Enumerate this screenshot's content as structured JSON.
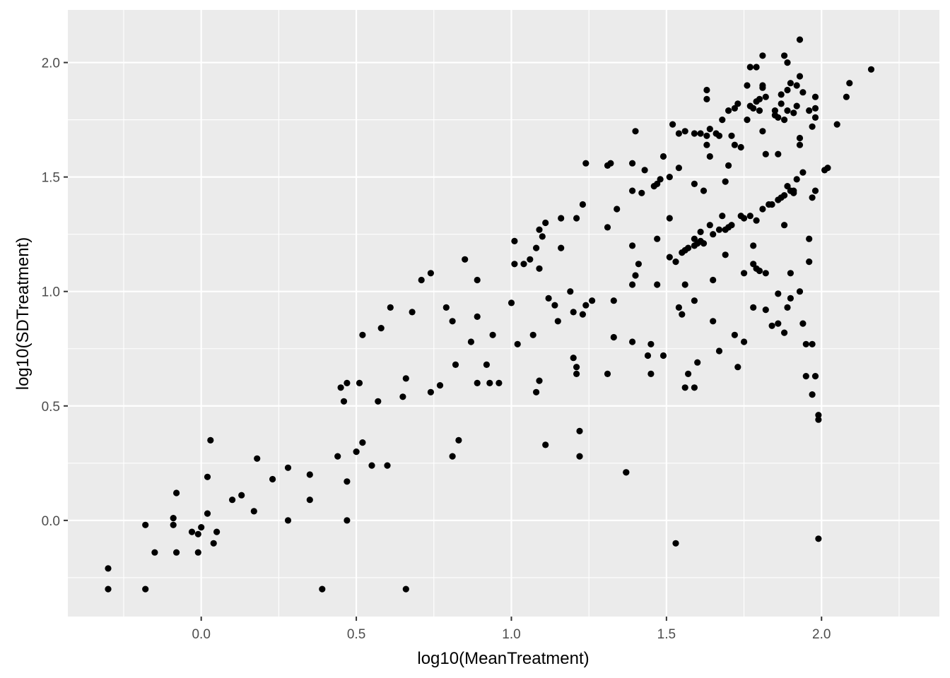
{
  "chart_data": {
    "type": "scatter",
    "title": "",
    "xlabel": "log10(MeanTreatment)",
    "ylabel": "log10(SDTreatment)",
    "xlim": [
      -0.43,
      2.38
    ],
    "ylim": [
      -0.42,
      2.23
    ],
    "x_ticks": [
      0.0,
      0.5,
      1.0,
      1.5,
      2.0
    ],
    "x_tick_labels": [
      "0.0",
      "0.5",
      "1.0",
      "1.5",
      "2.0"
    ],
    "y_ticks": [
      0.0,
      0.5,
      1.0,
      1.5,
      2.0
    ],
    "y_tick_labels": [
      "0.0",
      "0.5",
      "1.0",
      "1.5",
      "2.0"
    ],
    "grid": true,
    "legend": "none",
    "colors": {
      "panel": "#ebebeb",
      "grid": "#ffffff",
      "point": "#000000"
    },
    "points": [
      [
        -0.3,
        -0.21
      ],
      [
        -0.3,
        -0.3
      ],
      [
        -0.18,
        -0.02
      ],
      [
        -0.18,
        -0.3
      ],
      [
        -0.15,
        -0.14
      ],
      [
        -0.09,
        0.01
      ],
      [
        -0.09,
        -0.02
      ],
      [
        -0.08,
        0.12
      ],
      [
        -0.08,
        -0.14
      ],
      [
        -0.03,
        -0.05
      ],
      [
        -0.01,
        -0.06
      ],
      [
        -0.01,
        -0.14
      ],
      [
        0.0,
        -0.03
      ],
      [
        0.02,
        0.19
      ],
      [
        0.02,
        0.03
      ],
      [
        0.03,
        0.35
      ],
      [
        0.04,
        -0.1
      ],
      [
        0.05,
        -0.05
      ],
      [
        0.1,
        0.09
      ],
      [
        0.13,
        0.11
      ],
      [
        0.17,
        0.04
      ],
      [
        0.18,
        0.27
      ],
      [
        0.23,
        0.18
      ],
      [
        0.28,
        0.23
      ],
      [
        0.28,
        0.0
      ],
      [
        0.35,
        0.2
      ],
      [
        0.35,
        0.09
      ],
      [
        0.39,
        -0.3
      ],
      [
        0.44,
        0.28
      ],
      [
        0.45,
        0.58
      ],
      [
        0.46,
        0.52
      ],
      [
        0.47,
        0.6
      ],
      [
        0.47,
        0.17
      ],
      [
        0.47,
        0.0
      ],
      [
        0.5,
        0.3
      ],
      [
        0.51,
        0.6
      ],
      [
        0.52,
        0.34
      ],
      [
        0.52,
        0.81
      ],
      [
        0.55,
        0.24
      ],
      [
        0.57,
        0.52
      ],
      [
        0.58,
        0.84
      ],
      [
        0.6,
        0.24
      ],
      [
        0.61,
        0.93
      ],
      [
        0.65,
        0.54
      ],
      [
        0.66,
        0.62
      ],
      [
        0.66,
        -0.3
      ],
      [
        0.68,
        0.91
      ],
      [
        0.71,
        1.05
      ],
      [
        0.74,
        1.08
      ],
      [
        0.74,
        0.56
      ],
      [
        0.77,
        0.59
      ],
      [
        0.79,
        0.93
      ],
      [
        0.81,
        0.87
      ],
      [
        0.81,
        0.28
      ],
      [
        0.82,
        0.68
      ],
      [
        0.83,
        0.35
      ],
      [
        0.85,
        1.14
      ],
      [
        0.87,
        0.78
      ],
      [
        0.89,
        1.05
      ],
      [
        0.89,
        0.89
      ],
      [
        0.89,
        0.6
      ],
      [
        0.92,
        0.68
      ],
      [
        0.93,
        0.6
      ],
      [
        0.94,
        0.81
      ],
      [
        0.96,
        0.6
      ],
      [
        1.0,
        0.95
      ],
      [
        1.01,
        1.12
      ],
      [
        1.01,
        1.22
      ],
      [
        1.02,
        0.77
      ],
      [
        1.04,
        1.12
      ],
      [
        1.06,
        1.14
      ],
      [
        1.07,
        0.81
      ],
      [
        1.08,
        1.19
      ],
      [
        1.08,
        0.56
      ],
      [
        1.09,
        0.61
      ],
      [
        1.09,
        1.27
      ],
      [
        1.09,
        1.1
      ],
      [
        1.1,
        1.24
      ],
      [
        1.11,
        1.3
      ],
      [
        1.11,
        0.33
      ],
      [
        1.12,
        0.97
      ],
      [
        1.14,
        0.94
      ],
      [
        1.15,
        0.87
      ],
      [
        1.16,
        1.32
      ],
      [
        1.16,
        1.19
      ],
      [
        1.19,
        1.0
      ],
      [
        1.2,
        0.91
      ],
      [
        1.2,
        0.71
      ],
      [
        1.21,
        0.67
      ],
      [
        1.21,
        0.64
      ],
      [
        1.21,
        1.32
      ],
      [
        1.22,
        0.39
      ],
      [
        1.22,
        0.28
      ],
      [
        1.23,
        1.38
      ],
      [
        1.23,
        0.9
      ],
      [
        1.24,
        1.56
      ],
      [
        1.24,
        0.94
      ],
      [
        1.26,
        0.96
      ],
      [
        1.31,
        1.55
      ],
      [
        1.31,
        1.28
      ],
      [
        1.31,
        0.64
      ],
      [
        1.32,
        1.56
      ],
      [
        1.33,
        0.96
      ],
      [
        1.33,
        0.8
      ],
      [
        1.34,
        1.36
      ],
      [
        1.37,
        0.21
      ],
      [
        1.37,
        0.21
      ],
      [
        1.39,
        1.56
      ],
      [
        1.39,
        1.44
      ],
      [
        1.39,
        1.2
      ],
      [
        1.39,
        1.03
      ],
      [
        1.39,
        0.78
      ],
      [
        1.4,
        1.7
      ],
      [
        1.4,
        1.07
      ],
      [
        1.41,
        1.12
      ],
      [
        1.42,
        1.43
      ],
      [
        1.43,
        1.53
      ],
      [
        1.44,
        0.72
      ],
      [
        1.45,
        0.77
      ],
      [
        1.45,
        0.64
      ],
      [
        1.46,
        1.46
      ],
      [
        1.47,
        1.47
      ],
      [
        1.47,
        1.23
      ],
      [
        1.47,
        1.03
      ],
      [
        1.48,
        1.49
      ],
      [
        1.49,
        1.59
      ],
      [
        1.49,
        0.72
      ],
      [
        1.51,
        1.32
      ],
      [
        1.51,
        1.5
      ],
      [
        1.51,
        1.15
      ],
      [
        1.52,
        1.73
      ],
      [
        1.53,
        1.13
      ],
      [
        1.53,
        -0.1
      ],
      [
        1.54,
        1.69
      ],
      [
        1.54,
        1.54
      ],
      [
        1.54,
        0.93
      ],
      [
        1.55,
        0.9
      ],
      [
        1.55,
        1.17
      ],
      [
        1.56,
        1.7
      ],
      [
        1.56,
        1.18
      ],
      [
        1.56,
        0.58
      ],
      [
        1.56,
        1.03
      ],
      [
        1.57,
        1.19
      ],
      [
        1.57,
        0.64
      ],
      [
        1.59,
        1.69
      ],
      [
        1.59,
        1.47
      ],
      [
        1.59,
        1.23
      ],
      [
        1.59,
        1.2
      ],
      [
        1.59,
        0.96
      ],
      [
        1.59,
        0.58
      ],
      [
        1.6,
        1.21
      ],
      [
        1.6,
        0.69
      ],
      [
        1.61,
        1.69
      ],
      [
        1.61,
        1.26
      ],
      [
        1.61,
        1.22
      ],
      [
        1.62,
        1.44
      ],
      [
        1.62,
        1.21
      ],
      [
        1.63,
        1.88
      ],
      [
        1.63,
        1.84
      ],
      [
        1.63,
        1.68
      ],
      [
        1.63,
        1.64
      ],
      [
        1.64,
        1.71
      ],
      [
        1.64,
        1.59
      ],
      [
        1.64,
        1.29
      ],
      [
        1.65,
        1.25
      ],
      [
        1.65,
        1.05
      ],
      [
        1.65,
        0.87
      ],
      [
        1.66,
        1.69
      ],
      [
        1.67,
        1.68
      ],
      [
        1.67,
        1.27
      ],
      [
        1.67,
        0.74
      ],
      [
        1.68,
        1.75
      ],
      [
        1.68,
        1.33
      ],
      [
        1.69,
        1.48
      ],
      [
        1.69,
        1.27
      ],
      [
        1.69,
        1.16
      ],
      [
        1.7,
        1.79
      ],
      [
        1.7,
        1.55
      ],
      [
        1.7,
        1.28
      ],
      [
        1.71,
        1.68
      ],
      [
        1.71,
        1.29
      ],
      [
        1.72,
        1.8
      ],
      [
        1.72,
        1.64
      ],
      [
        1.72,
        0.81
      ],
      [
        1.73,
        1.82
      ],
      [
        1.73,
        0.67
      ],
      [
        1.74,
        1.33
      ],
      [
        1.74,
        1.63
      ],
      [
        1.75,
        1.32
      ],
      [
        1.75,
        1.08
      ],
      [
        1.75,
        0.78
      ],
      [
        1.76,
        1.9
      ],
      [
        1.76,
        1.75
      ],
      [
        1.77,
        1.98
      ],
      [
        1.77,
        1.81
      ],
      [
        1.77,
        1.33
      ],
      [
        1.78,
        1.8
      ],
      [
        1.78,
        1.2
      ],
      [
        1.78,
        1.12
      ],
      [
        1.78,
        0.93
      ],
      [
        1.79,
        1.98
      ],
      [
        1.79,
        1.83
      ],
      [
        1.79,
        1.31
      ],
      [
        1.79,
        1.1
      ],
      [
        1.8,
        1.84
      ],
      [
        1.8,
        1.79
      ],
      [
        1.8,
        1.09
      ],
      [
        1.81,
        2.03
      ],
      [
        1.81,
        1.9
      ],
      [
        1.81,
        1.89
      ],
      [
        1.81,
        1.7
      ],
      [
        1.81,
        1.36
      ],
      [
        1.82,
        1.85
      ],
      [
        1.82,
        1.6
      ],
      [
        1.82,
        1.08
      ],
      [
        1.82,
        0.92
      ],
      [
        1.83,
        1.38
      ],
      [
        1.84,
        1.38
      ],
      [
        1.84,
        0.85
      ],
      [
        1.85,
        1.79
      ],
      [
        1.85,
        1.77
      ],
      [
        1.86,
        1.76
      ],
      [
        1.86,
        1.6
      ],
      [
        1.86,
        1.4
      ],
      [
        1.86,
        0.99
      ],
      [
        1.86,
        0.86
      ],
      [
        1.87,
        1.86
      ],
      [
        1.87,
        1.82
      ],
      [
        1.87,
        1.41
      ],
      [
        1.88,
        2.03
      ],
      [
        1.88,
        1.75
      ],
      [
        1.88,
        1.42
      ],
      [
        1.88,
        1.29
      ],
      [
        1.88,
        0.82
      ],
      [
        1.89,
        1.88
      ],
      [
        1.89,
        1.79
      ],
      [
        1.89,
        1.46
      ],
      [
        1.89,
        0.93
      ],
      [
        1.89,
        2.0
      ],
      [
        1.9,
        1.91
      ],
      [
        1.9,
        1.44
      ],
      [
        1.9,
        1.08
      ],
      [
        1.9,
        0.97
      ],
      [
        1.91,
        1.78
      ],
      [
        1.91,
        1.44
      ],
      [
        1.91,
        1.43
      ],
      [
        1.92,
        1.9
      ],
      [
        1.92,
        1.81
      ],
      [
        1.92,
        1.49
      ],
      [
        1.93,
        2.1
      ],
      [
        1.93,
        1.94
      ],
      [
        1.93,
        1.67
      ],
      [
        1.93,
        1.64
      ],
      [
        1.93,
        1.0
      ],
      [
        1.94,
        1.87
      ],
      [
        1.94,
        1.52
      ],
      [
        1.94,
        0.86
      ],
      [
        1.95,
        0.77
      ],
      [
        1.95,
        0.63
      ],
      [
        1.96,
        1.79
      ],
      [
        1.96,
        1.13
      ],
      [
        1.96,
        1.23
      ],
      [
        1.97,
        1.72
      ],
      [
        1.97,
        1.41
      ],
      [
        1.97,
        0.77
      ],
      [
        1.97,
        0.55
      ],
      [
        1.98,
        1.8
      ],
      [
        1.98,
        1.85
      ],
      [
        1.98,
        1.76
      ],
      [
        1.98,
        1.44
      ],
      [
        1.98,
        0.63
      ],
      [
        1.99,
        0.44
      ],
      [
        1.99,
        0.46
      ],
      [
        1.99,
        -0.08
      ],
      [
        2.01,
        1.53
      ],
      [
        2.02,
        1.54
      ],
      [
        2.05,
        1.73
      ],
      [
        2.08,
        1.85
      ],
      [
        2.09,
        1.91
      ],
      [
        2.16,
        1.97
      ]
    ]
  }
}
